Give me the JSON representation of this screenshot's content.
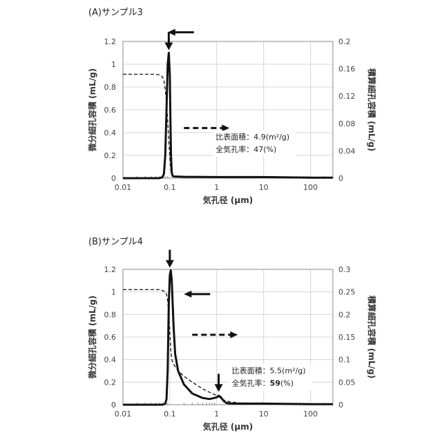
{
  "chart_data": [
    {
      "type": "line",
      "title": "(A)サンプル3",
      "xlabel": "気孔径 (μm)",
      "ylabel": "微分細孔容積 (mL/g)",
      "y2label": "積算細孔容積 (mL/g)",
      "xscale": "log",
      "xlim": [
        0.01,
        300
      ],
      "ylim": [
        0,
        1.2
      ],
      "y2lim": [
        0,
        0.2
      ],
      "xticks": [
        "0.01",
        "0.1",
        "1",
        "10",
        "100"
      ],
      "yticks": [
        "0",
        "0.2",
        "0.4",
        "0.6",
        "0.8",
        "1",
        "1.2"
      ],
      "y2ticks": [
        "0",
        "0.04",
        "0.08",
        "0.12",
        "0.16",
        "0.2"
      ],
      "grid": true,
      "annotation_lines": [
        "比表面積：4.9(m²/g)",
        "全気孔率：47(%)"
      ],
      "series": [
        {
          "axis": "left",
          "style": "solid",
          "x": [
            0.01,
            0.06,
            0.07,
            0.075,
            0.08,
            0.085,
            0.09,
            0.095,
            0.1,
            0.103,
            0.106,
            0.11,
            0.115,
            0.12,
            0.2,
            1,
            10,
            100,
            300
          ],
          "y": [
            0,
            0,
            0.01,
            0.04,
            0.2,
            0.6,
            1.0,
            1.1,
            0.9,
            0.5,
            0.2,
            0.05,
            0.02,
            0.015,
            0.012,
            0.01,
            0.01,
            0.005,
            0.005
          ]
        },
        {
          "axis": "right",
          "style": "dashed",
          "x": [
            0.01,
            0.05,
            0.06,
            0.065,
            0.07,
            0.075,
            0.08,
            0.085,
            0.09,
            0.095,
            0.1,
            0.105,
            0.11,
            0.115,
            0.12,
            0.2,
            1,
            10,
            100,
            300
          ],
          "y": [
            0.152,
            0.152,
            0.151,
            0.15,
            0.148,
            0.142,
            0.13,
            0.11,
            0.085,
            0.055,
            0.03,
            0.012,
            0.006,
            0.004,
            0.003,
            0.0025,
            0.002,
            0.0015,
            0.001,
            0.0005
          ]
        }
      ],
      "arrows": [
        {
          "shape": "peak_marker",
          "x": 0.095,
          "y": 1.1
        },
        {
          "shape": "axis_left",
          "x": 0.09,
          "y": 1.28
        },
        {
          "shape": "axis_right",
          "x": 0.2,
          "y": 0.44
        }
      ],
      "label_at": {
        "x": 0.95,
        "y": 0.34
      }
    },
    {
      "type": "line",
      "title": "(B)サンプル4",
      "xlabel": "気孔径 (μm)",
      "ylabel": "微分細孔容積 (mL/g)",
      "y2label": "積算細孔容積 (mL/g)",
      "xscale": "log",
      "xlim": [
        0.01,
        300
      ],
      "ylim": [
        0,
        1.2
      ],
      "y2lim": [
        0,
        0.3
      ],
      "xticks": [
        "0.01",
        "0.1",
        "1",
        "10",
        "100"
      ],
      "yticks": [
        "0",
        "0.2",
        "0.4",
        "0.6",
        "0.8",
        "1",
        "1.2"
      ],
      "y2ticks": [
        "0",
        "0.05",
        "0.1",
        "0.15",
        "0.2",
        "0.25",
        "0.3"
      ],
      "grid": true,
      "annotation_lines": [
        "比表面積：5.5(m²/g)",
        "全気孔率：59(%)"
      ],
      "annotation_bold": "59",
      "series": [
        {
          "axis": "left",
          "style": "solid",
          "x": [
            0.01,
            0.07,
            0.08,
            0.085,
            0.09,
            0.095,
            0.1,
            0.105,
            0.11,
            0.115,
            0.12,
            0.13,
            0.15,
            0.2,
            0.3,
            0.5,
            0.7,
            1.0,
            1.1,
            1.2,
            1.4,
            1.6,
            2,
            3,
            10,
            100,
            300
          ],
          "y": [
            0,
            0,
            0.01,
            0.05,
            0.3,
            0.9,
            1.15,
            1.19,
            1.1,
            0.9,
            0.7,
            0.45,
            0.3,
            0.18,
            0.1,
            0.06,
            0.05,
            0.065,
            0.08,
            0.07,
            0.035,
            0.015,
            0.01,
            0.01,
            0.01,
            0.005,
            0.005
          ]
        },
        {
          "axis": "right",
          "style": "dashed",
          "x": [
            0.01,
            0.06,
            0.07,
            0.08,
            0.085,
            0.09,
            0.095,
            0.1,
            0.105,
            0.11,
            0.12,
            0.15,
            0.2,
            0.3,
            0.5,
            1.0,
            1.2,
            1.5,
            2,
            3,
            10,
            100,
            300
          ],
          "y": [
            0.255,
            0.255,
            0.253,
            0.25,
            0.245,
            0.23,
            0.2,
            0.16,
            0.12,
            0.1,
            0.09,
            0.075,
            0.063,
            0.05,
            0.035,
            0.02,
            0.015,
            0.009,
            0.006,
            0.004,
            0.003,
            0.002,
            0.0015
          ]
        }
      ],
      "arrows": [
        {
          "shape": "peak_marker",
          "x": 0.1,
          "y": 1.19
        },
        {
          "shape": "peak_marker",
          "x": 1.1,
          "y": 0.09
        },
        {
          "shape": "axis_left",
          "x": 0.2,
          "y": 0.98
        },
        {
          "shape": "axis_right",
          "x": 0.3,
          "y": 0.62
        }
      ],
      "label_at": {
        "x": 2.1,
        "y": 0.28
      }
    }
  ]
}
